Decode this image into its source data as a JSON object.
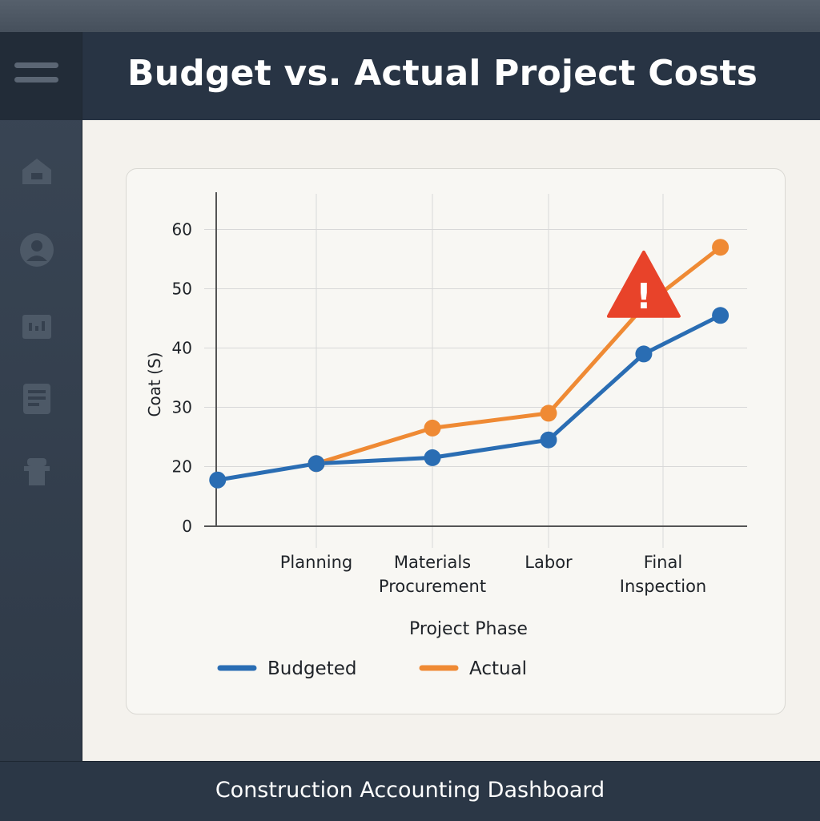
{
  "header": {
    "title": "Budget vs. Actual Project Costs"
  },
  "footer": {
    "text": "Construction Accounting Dashboard"
  },
  "sidebar": {
    "items": [
      {
        "icon": "home-icon"
      },
      {
        "icon": "user-icon"
      },
      {
        "icon": "chart-icon"
      },
      {
        "icon": "document-icon"
      },
      {
        "icon": "worker-icon"
      }
    ]
  },
  "colors": {
    "budgeted": "#2a6db3",
    "actual": "#ef8a34",
    "warning": "#e8432a",
    "sidebar": "#2f3a48",
    "header": "#283444"
  },
  "chart_data": {
    "type": "line",
    "title": "",
    "xlabel": "Project Phase",
    "ylabel": "Coat (S)",
    "ylim": [
      0,
      60
    ],
    "yticks": [
      0,
      20,
      30,
      40,
      50,
      60
    ],
    "category_labels": [
      {
        "lines": [
          "Planning"
        ]
      },
      {
        "lines": [
          "Materials",
          "Procurement"
        ]
      },
      {
        "lines": [
          "Labor"
        ]
      },
      {
        "lines": [
          "Final",
          "Inspection"
        ]
      }
    ],
    "series": [
      {
        "name": "Budgeted",
        "points": [
          [
            0.15,
            15.5
          ],
          [
            1,
            20.5
          ],
          [
            2,
            21.5
          ],
          [
            3,
            24.5
          ],
          [
            3.82,
            39
          ],
          [
            4.48,
            45.5
          ]
        ]
      },
      {
        "name": "Actual",
        "points": [
          [
            1,
            20.5
          ],
          [
            2,
            26.5
          ],
          [
            3,
            29
          ],
          [
            3.82,
            47
          ],
          [
            4.48,
            57
          ]
        ]
      }
    ],
    "annotation": {
      "icon": "warning-icon",
      "symbol": "!",
      "x": 3.82,
      "y": 50.5
    },
    "grid": true,
    "legend": "bottom"
  }
}
